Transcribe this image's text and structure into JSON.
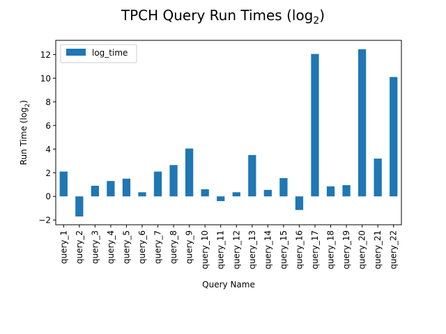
{
  "chart_data": {
    "type": "bar",
    "title": "TPCH Query Run Times (log",
    "title_sub": "2",
    "title_suffix": ")",
    "xlabel": "Query Name",
    "ylabel": "Run Time (log",
    "ylabel_sub": "2",
    "ylabel_suffix": ")",
    "ylim": [
      -2.4,
      13.2
    ],
    "yticks": [
      -2,
      0,
      2,
      4,
      6,
      8,
      10,
      12
    ],
    "ytick_labels": [
      "−2",
      "0",
      "2",
      "4",
      "6",
      "8",
      "10",
      "12"
    ],
    "categories": [
      "query_1",
      "query_2",
      "query_3",
      "query_4",
      "query_5",
      "query_6",
      "query_7",
      "query_8",
      "query_9",
      "query_10",
      "query_11",
      "query_12",
      "query_13",
      "query_14",
      "query_15",
      "query_16",
      "query_17",
      "query_18",
      "query_19",
      "query_20",
      "query_21",
      "query_22"
    ],
    "series": [
      {
        "name": "log_time",
        "color": "#1f77b4",
        "values": [
          2.1,
          -1.7,
          0.9,
          1.3,
          1.5,
          0.35,
          2.1,
          2.65,
          4.05,
          0.6,
          -0.4,
          0.35,
          3.5,
          0.55,
          1.55,
          -1.15,
          12.05,
          0.85,
          0.95,
          12.45,
          3.2,
          10.1
        ]
      }
    ],
    "legend": "top-left",
    "grid": false
  }
}
